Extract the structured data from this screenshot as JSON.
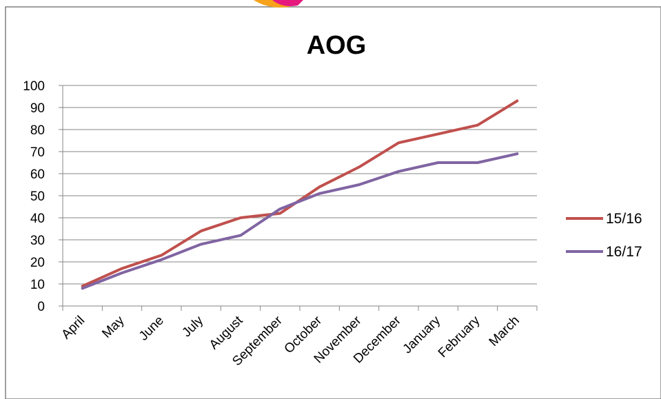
{
  "chart_data": {
    "type": "line",
    "title": "AOG",
    "categories": [
      "April",
      "May",
      "June",
      "July",
      "August",
      "September",
      "October",
      "November",
      "December",
      "January",
      "February",
      "March"
    ],
    "ylim": [
      0,
      100
    ],
    "yticks": [
      0,
      10,
      20,
      30,
      40,
      50,
      60,
      70,
      80,
      90,
      100
    ],
    "grid": true,
    "legend_position": "right",
    "series": [
      {
        "name": "15/16",
        "color": "#c0504d",
        "values": [
          9,
          17,
          23,
          34,
          40,
          42,
          54,
          63,
          74,
          78,
          82,
          93
        ]
      },
      {
        "name": "16/17",
        "color": "#8064a2",
        "values": [
          8,
          15,
          21,
          28,
          32,
          44,
          51,
          55,
          61,
          65,
          65,
          69
        ]
      }
    ]
  },
  "decoration": {
    "logo_arc_colors": [
      "#f7a21b",
      "#e5197e"
    ]
  }
}
